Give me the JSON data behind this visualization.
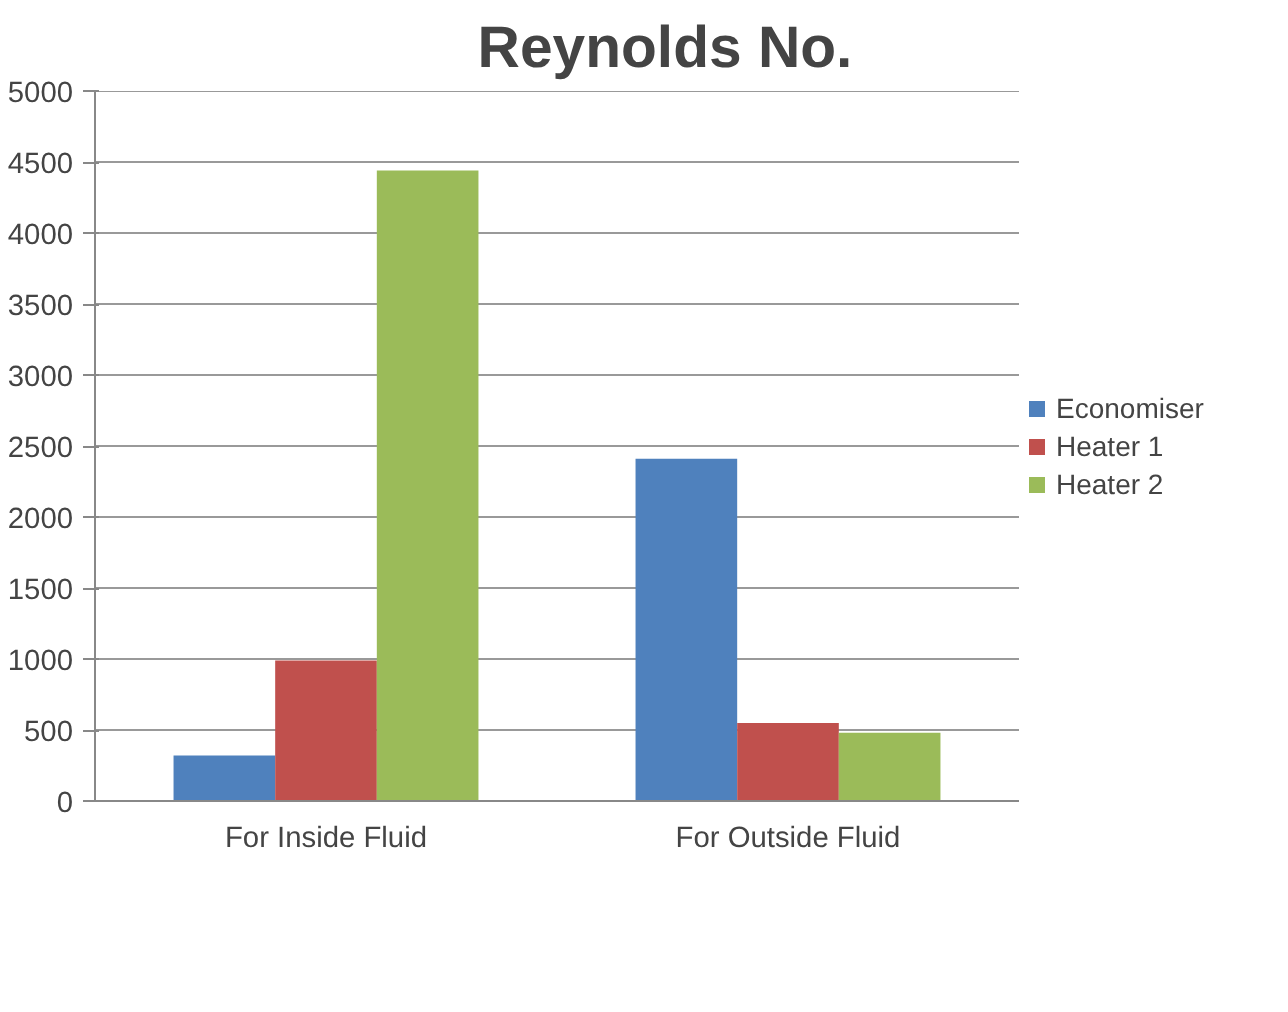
{
  "chart_data": {
    "type": "bar",
    "title": "Reynolds No.",
    "categories": [
      "For Inside Fluid",
      "For Outside Fluid"
    ],
    "series": [
      {
        "name": "Economiser",
        "color": "#4f81bd",
        "values": [
          320,
          2410
        ]
      },
      {
        "name": "Heater 1",
        "color": "#c0504d",
        "values": [
          990,
          550
        ]
      },
      {
        "name": "Heater 2",
        "color": "#9bbb59",
        "values": [
          4440,
          480
        ]
      }
    ],
    "ylim": [
      0,
      5000
    ],
    "yticks": [
      0,
      500,
      1000,
      1500,
      2000,
      2500,
      3000,
      3500,
      4000,
      4500,
      5000
    ],
    "grid": "y",
    "legend": "right"
  }
}
